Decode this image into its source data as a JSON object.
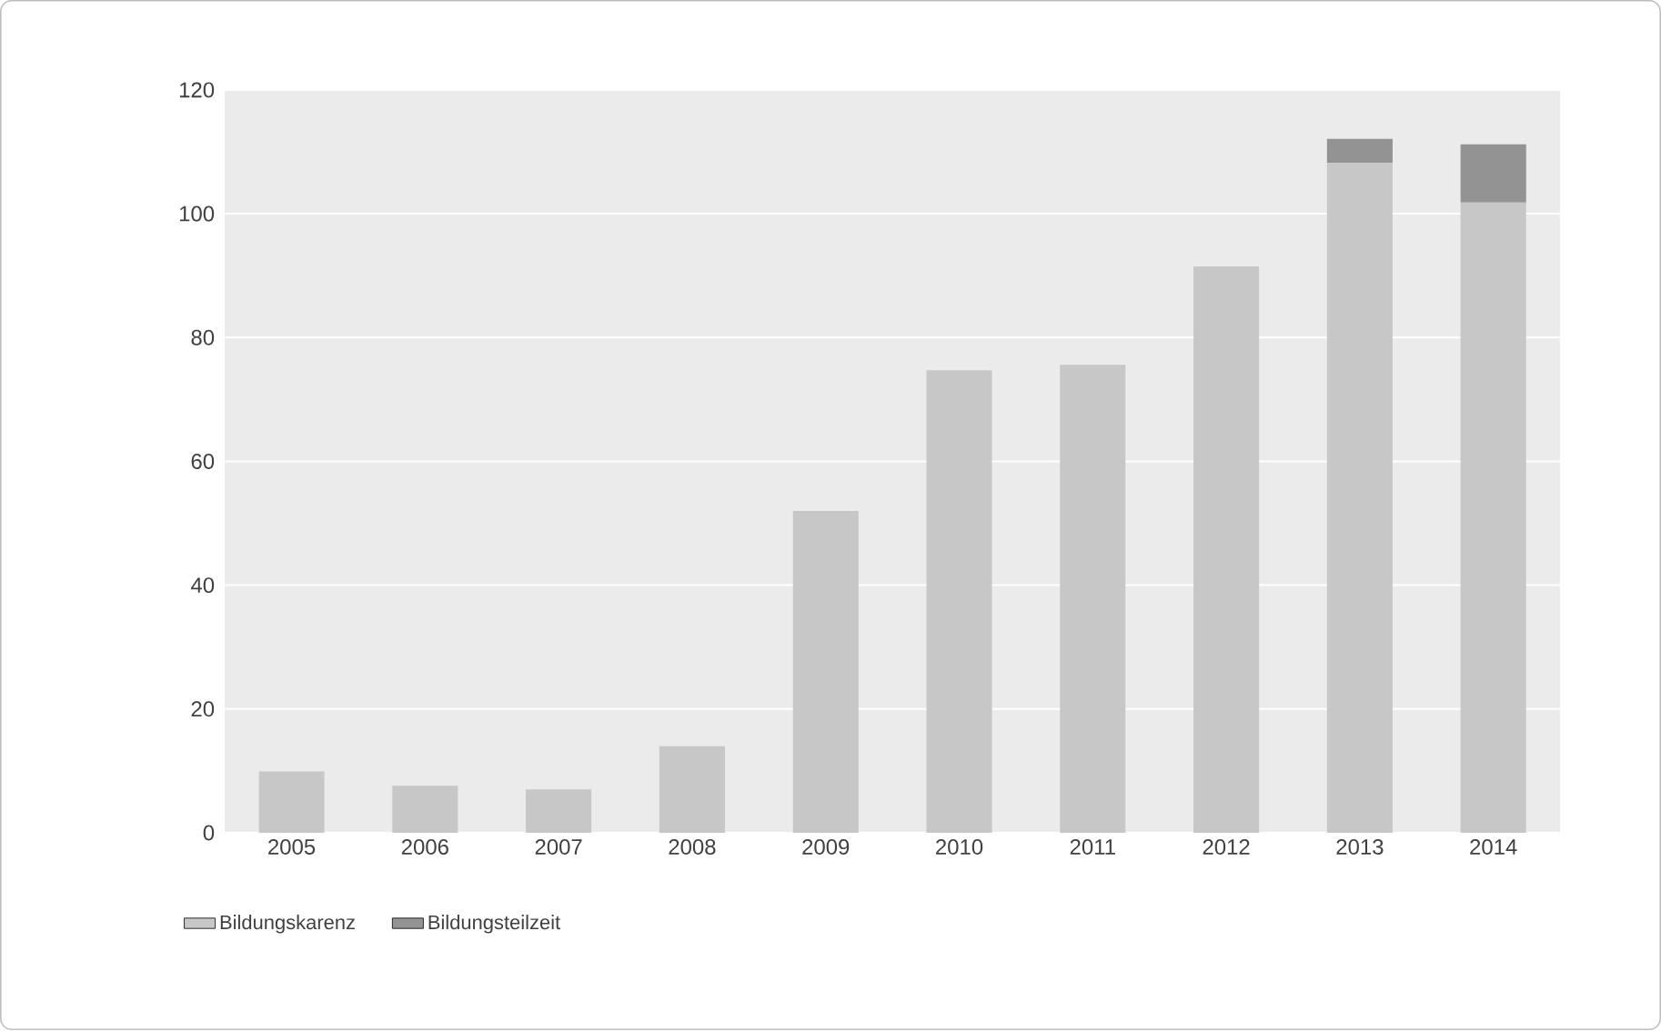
{
  "chart_data": {
    "type": "bar",
    "stacked": true,
    "categories": [
      "2005",
      "2006",
      "2007",
      "2008",
      "2009",
      "2010",
      "2011",
      "2012",
      "2013",
      "2014"
    ],
    "series": [
      {
        "name": "Bildungskarenz",
        "color": "#c6c7c6",
        "values": [
          9.9,
          7.6,
          7.0,
          14.0,
          52.0,
          74.7,
          75.6,
          91.5,
          108.2,
          101.8
        ]
      },
      {
        "name": "Bildungsteilzeit",
        "color": "#939393",
        "values": [
          null,
          null,
          null,
          null,
          null,
          null,
          null,
          null,
          3.9,
          9.4
        ]
      }
    ],
    "ylim": [
      0,
      120
    ],
    "yticks": [
      0,
      20,
      40,
      60,
      80,
      100,
      120
    ],
    "grid": "y",
    "legend": "bottom left"
  }
}
